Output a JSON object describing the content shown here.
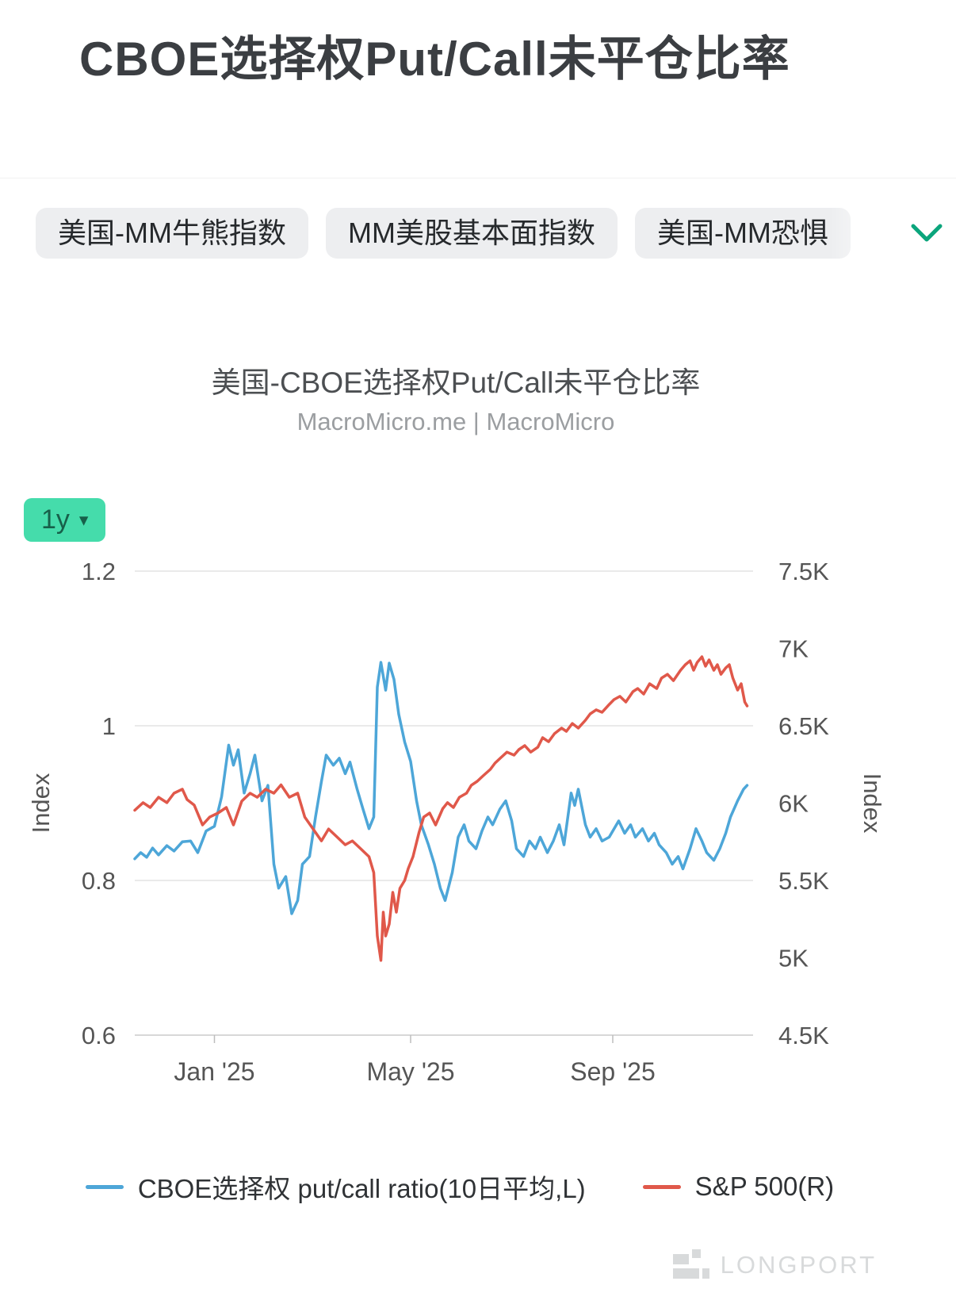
{
  "page": {
    "title": "CBOE选择权Put/Call未平仓比率"
  },
  "tags": {
    "items": [
      {
        "label": "美国-MM牛熊指数"
      },
      {
        "label": "MM美股基本面指数"
      },
      {
        "label": "美国-MM恐惧"
      }
    ]
  },
  "chart": {
    "title": "美国-CBOE选择权Put/Call未平仓比率",
    "subtitle": "MacroMicro.me | MacroMicro",
    "range_selector": {
      "label": "1y",
      "arrow": "▾"
    }
  },
  "colors": {
    "chevron_green": "#0ba57c",
    "range_button_bg": "#45dcab",
    "range_button_text": "#17604a",
    "grid_line": "#e4e4e4",
    "axis_text": "#555555",
    "put_call_blue": "#4da6d8",
    "sp500_red": "#e0584a"
  },
  "watermark": {
    "text": "LONGPORT"
  },
  "chart_data": {
    "type": "line",
    "title": "美国-CBOE选择权Put/Call未平仓比率",
    "subtitle": "MacroMicro.me | MacroMicro",
    "x_unit": "weeks_from_mid_nov_2024",
    "x_range": [
      0,
      52
    ],
    "x_ticks": [
      {
        "pos": 6.7,
        "label": "Jan '25"
      },
      {
        "pos": 23.2,
        "label": "May '25"
      },
      {
        "pos": 40.2,
        "label": "Sep '25"
      }
    ],
    "grid": true,
    "legend_position": "bottom",
    "left_axis": {
      "label": "Index",
      "min": 0.6,
      "max": 1.2,
      "ticks": [
        1.2,
        1.0,
        0.8,
        0.6
      ],
      "tick_labels": [
        "1.2",
        "1",
        "0.8",
        "0.6"
      ]
    },
    "right_axis": {
      "label": "Index",
      "min": 4500,
      "max": 7500,
      "ticks": [
        7500,
        7000,
        6500,
        6000,
        5500,
        5000,
        4500
      ],
      "tick_labels": [
        "7.5K",
        "7K",
        "6.5K",
        "6K",
        "5.5K",
        "5K",
        "4.5K"
      ]
    },
    "series": [
      {
        "name": "CBOE选择权 put/call ratio(10日平均,L)",
        "axis": "left",
        "color": "#4da6d8",
        "points": [
          [
            0,
            0.828
          ],
          [
            0.5,
            0.836
          ],
          [
            1,
            0.83
          ],
          [
            1.5,
            0.842
          ],
          [
            2,
            0.833
          ],
          [
            2.7,
            0.845
          ],
          [
            3.3,
            0.838
          ],
          [
            4,
            0.85
          ],
          [
            4.7,
            0.851
          ],
          [
            5.3,
            0.836
          ],
          [
            6,
            0.864
          ],
          [
            6.7,
            0.87
          ],
          [
            7.3,
            0.908
          ],
          [
            7.9,
            0.975
          ],
          [
            8.3,
            0.949
          ],
          [
            8.7,
            0.969
          ],
          [
            9.2,
            0.913
          ],
          [
            9.7,
            0.938
          ],
          [
            10.1,
            0.962
          ],
          [
            10.7,
            0.903
          ],
          [
            11.2,
            0.923
          ],
          [
            11.7,
            0.821
          ],
          [
            12.1,
            0.79
          ],
          [
            12.7,
            0.805
          ],
          [
            13.2,
            0.757
          ],
          [
            13.7,
            0.774
          ],
          [
            14.1,
            0.821
          ],
          [
            14.7,
            0.831
          ],
          [
            15.2,
            0.882
          ],
          [
            15.7,
            0.928
          ],
          [
            16.1,
            0.962
          ],
          [
            16.7,
            0.949
          ],
          [
            17.2,
            0.958
          ],
          [
            17.7,
            0.938
          ],
          [
            18.1,
            0.953
          ],
          [
            18.7,
            0.918
          ],
          [
            19.2,
            0.892
          ],
          [
            19.7,
            0.867
          ],
          [
            20.1,
            0.882
          ],
          [
            20.4,
            1.05
          ],
          [
            20.7,
            1.082
          ],
          [
            21.1,
            1.046
          ],
          [
            21.4,
            1.081
          ],
          [
            21.8,
            1.06
          ],
          [
            22.2,
            1.015
          ],
          [
            22.7,
            0.979
          ],
          [
            23.2,
            0.954
          ],
          [
            23.7,
            0.903
          ],
          [
            24.1,
            0.872
          ],
          [
            24.7,
            0.846
          ],
          [
            25.2,
            0.821
          ],
          [
            25.7,
            0.79
          ],
          [
            26.1,
            0.774
          ],
          [
            26.7,
            0.81
          ],
          [
            27.2,
            0.856
          ],
          [
            27.7,
            0.872
          ],
          [
            28.1,
            0.851
          ],
          [
            28.7,
            0.841
          ],
          [
            29.2,
            0.864
          ],
          [
            29.7,
            0.882
          ],
          [
            30.1,
            0.872
          ],
          [
            30.7,
            0.892
          ],
          [
            31.2,
            0.903
          ],
          [
            31.7,
            0.877
          ],
          [
            32.1,
            0.841
          ],
          [
            32.7,
            0.831
          ],
          [
            33.2,
            0.851
          ],
          [
            33.7,
            0.841
          ],
          [
            34.1,
            0.856
          ],
          [
            34.7,
            0.836
          ],
          [
            35.2,
            0.851
          ],
          [
            35.7,
            0.872
          ],
          [
            36.1,
            0.846
          ],
          [
            36.7,
            0.913
          ],
          [
            37.0,
            0.897
          ],
          [
            37.3,
            0.918
          ],
          [
            37.9,
            0.872
          ],
          [
            38.3,
            0.856
          ],
          [
            38.8,
            0.867
          ],
          [
            39.3,
            0.851
          ],
          [
            39.9,
            0.856
          ],
          [
            40.7,
            0.877
          ],
          [
            41.2,
            0.861
          ],
          [
            41.7,
            0.872
          ],
          [
            42.1,
            0.856
          ],
          [
            42.7,
            0.867
          ],
          [
            43.2,
            0.851
          ],
          [
            43.7,
            0.861
          ],
          [
            44.1,
            0.846
          ],
          [
            44.7,
            0.836
          ],
          [
            45.2,
            0.821
          ],
          [
            45.7,
            0.831
          ],
          [
            46.1,
            0.815
          ],
          [
            46.7,
            0.841
          ],
          [
            47.2,
            0.867
          ],
          [
            47.7,
            0.851
          ],
          [
            48.1,
            0.836
          ],
          [
            48.7,
            0.826
          ],
          [
            49.2,
            0.841
          ],
          [
            49.7,
            0.861
          ],
          [
            50.1,
            0.882
          ],
          [
            50.7,
            0.903
          ],
          [
            51.2,
            0.918
          ],
          [
            51.5,
            0.923
          ]
        ]
      },
      {
        "name": "S&P 500(R)",
        "axis": "right",
        "color": "#e0584a",
        "points": [
          [
            0,
            5954
          ],
          [
            0.7,
            6003
          ],
          [
            1.3,
            5972
          ],
          [
            2,
            6038
          ],
          [
            2.7,
            6003
          ],
          [
            3.3,
            6064
          ],
          [
            4,
            6090
          ],
          [
            4.4,
            6023
          ],
          [
            5,
            5987
          ],
          [
            5.7,
            5859
          ],
          [
            6.3,
            5910
          ],
          [
            7,
            5936
          ],
          [
            7.7,
            5972
          ],
          [
            8.3,
            5859
          ],
          [
            9,
            6013
          ],
          [
            9.7,
            6064
          ],
          [
            10.3,
            6038
          ],
          [
            11,
            6090
          ],
          [
            11.7,
            6064
          ],
          [
            12.3,
            6118
          ],
          [
            13,
            6038
          ],
          [
            13.7,
            6064
          ],
          [
            14.3,
            5910
          ],
          [
            15,
            5833
          ],
          [
            15.7,
            5756
          ],
          [
            16.3,
            5833
          ],
          [
            17,
            5782
          ],
          [
            17.7,
            5731
          ],
          [
            18.3,
            5756
          ],
          [
            19,
            5705
          ],
          [
            19.7,
            5654
          ],
          [
            20.1,
            5551
          ],
          [
            20.4,
            5141
          ],
          [
            20.7,
            4983
          ],
          [
            20.9,
            5295
          ],
          [
            21.1,
            5141
          ],
          [
            21.4,
            5218
          ],
          [
            21.7,
            5423
          ],
          [
            22,
            5295
          ],
          [
            22.3,
            5449
          ],
          [
            22.7,
            5500
          ],
          [
            23,
            5577
          ],
          [
            23.4,
            5654
          ],
          [
            23.9,
            5808
          ],
          [
            24.3,
            5910
          ],
          [
            24.8,
            5936
          ],
          [
            25.3,
            5859
          ],
          [
            25.9,
            5964
          ],
          [
            26.3,
            6003
          ],
          [
            26.8,
            5972
          ],
          [
            27.3,
            6038
          ],
          [
            27.9,
            6064
          ],
          [
            28.3,
            6115
          ],
          [
            28.8,
            6141
          ],
          [
            29.3,
            6177
          ],
          [
            29.9,
            6218
          ],
          [
            30.3,
            6259
          ],
          [
            30.8,
            6295
          ],
          [
            31.3,
            6330
          ],
          [
            31.9,
            6310
          ],
          [
            32.3,
            6346
          ],
          [
            32.8,
            6372
          ],
          [
            33.3,
            6330
          ],
          [
            33.9,
            6362
          ],
          [
            34.3,
            6423
          ],
          [
            34.8,
            6397
          ],
          [
            35.3,
            6449
          ],
          [
            35.9,
            6485
          ],
          [
            36.3,
            6464
          ],
          [
            36.8,
            6515
          ],
          [
            37.3,
            6485
          ],
          [
            37.9,
            6536
          ],
          [
            38.3,
            6577
          ],
          [
            38.8,
            6603
          ],
          [
            39.3,
            6587
          ],
          [
            39.9,
            6638
          ],
          [
            40.3,
            6669
          ],
          [
            40.8,
            6690
          ],
          [
            41.3,
            6654
          ],
          [
            41.9,
            6721
          ],
          [
            42.3,
            6741
          ],
          [
            42.8,
            6705
          ],
          [
            43.3,
            6772
          ],
          [
            43.9,
            6741
          ],
          [
            44.3,
            6808
          ],
          [
            44.8,
            6833
          ],
          [
            45.3,
            6792
          ],
          [
            45.9,
            6859
          ],
          [
            46.3,
            6895
          ],
          [
            46.7,
            6920
          ],
          [
            47,
            6859
          ],
          [
            47.3,
            6910
          ],
          [
            47.7,
            6946
          ],
          [
            48,
            6885
          ],
          [
            48.3,
            6926
          ],
          [
            48.7,
            6859
          ],
          [
            49,
            6895
          ],
          [
            49.3,
            6833
          ],
          [
            49.7,
            6874
          ],
          [
            50,
            6895
          ],
          [
            50.3,
            6808
          ],
          [
            50.7,
            6731
          ],
          [
            51,
            6772
          ],
          [
            51.3,
            6654
          ],
          [
            51.5,
            6628
          ]
        ]
      }
    ]
  }
}
